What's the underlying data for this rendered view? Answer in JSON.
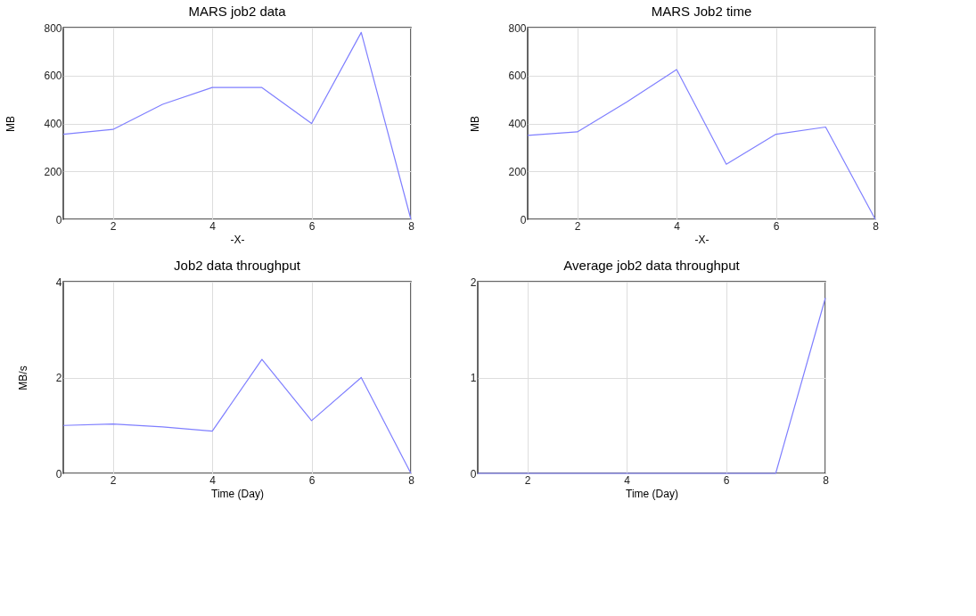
{
  "chart_data": [
    {
      "type": "line",
      "title": "MARS job2 data",
      "xlabel": "-X-",
      "ylabel": "MB",
      "x": [
        1,
        2,
        3,
        4,
        5,
        6,
        7,
        8
      ],
      "xlim": [
        1,
        8
      ],
      "xticks": [
        2,
        4,
        6,
        8
      ],
      "ylim": [
        0,
        800
      ],
      "yticks": [
        0,
        200,
        400,
        600,
        800
      ],
      "grid": true,
      "series": [
        {
          "color": "#7f7fff",
          "values": [
            355,
            375,
            480,
            550,
            550,
            400,
            780,
            0
          ]
        }
      ]
    },
    {
      "type": "line",
      "title": "MARS Job2 time",
      "xlabel": "-X-",
      "ylabel": "MB",
      "x": [
        1,
        2,
        3,
        4,
        5,
        6,
        7,
        8
      ],
      "xlim": [
        1,
        8
      ],
      "xticks": [
        2,
        4,
        6,
        8
      ],
      "ylim": [
        0,
        800
      ],
      "yticks": [
        0,
        200,
        400,
        600,
        800
      ],
      "grid": true,
      "series": [
        {
          "color": "#7f7fff",
          "values": [
            350,
            365,
            490,
            625,
            230,
            355,
            385,
            0
          ]
        }
      ]
    },
    {
      "type": "line",
      "title": "Job2 data throughput",
      "xlabel": "Time (Day)",
      "ylabel": "MB/s",
      "x": [
        1,
        2,
        3,
        4,
        5,
        6,
        7,
        8
      ],
      "xlim": [
        1,
        8
      ],
      "xticks": [
        2,
        4,
        6,
        8
      ],
      "ylim": [
        0,
        4
      ],
      "yticks": [
        0,
        2,
        4
      ],
      "grid": true,
      "series": [
        {
          "color": "#7f7fff",
          "values": [
            1.0,
            1.03,
            0.97,
            0.88,
            2.38,
            1.1,
            2.0,
            0
          ]
        }
      ]
    },
    {
      "type": "line",
      "title": "Average job2 data throughput",
      "xlabel": "Time (Day)",
      "x": [
        1,
        2,
        3,
        4,
        5,
        6,
        7,
        8
      ],
      "xlim": [
        1,
        8
      ],
      "xticks": [
        2,
        4,
        6,
        8
      ],
      "ylim": [
        0,
        2
      ],
      "yticks": [
        0,
        1,
        2
      ],
      "grid": true,
      "series": [
        {
          "color": "#7f7fff",
          "values": [
            0,
            0,
            0,
            0,
            0,
            0,
            0,
            1.83
          ]
        }
      ]
    }
  ]
}
